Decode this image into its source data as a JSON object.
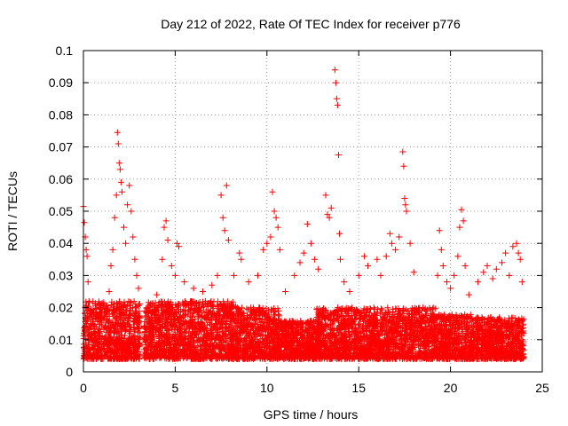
{
  "chart_data": {
    "type": "scatter",
    "title": "Day 212 of 2022, Rate Of TEC Index for receiver p776",
    "xlabel": "GPS time / hours",
    "ylabel": "ROTI / TECUs",
    "xlim": [
      0,
      25
    ],
    "ylim": [
      0,
      0.1
    ],
    "xticks": [
      "0",
      "5",
      "10",
      "15",
      "20",
      "25"
    ],
    "yticks": [
      "0",
      "0.01",
      "0.02",
      "0.03",
      "0.04",
      "0.05",
      "0.06",
      "0.07",
      "0.08",
      "0.09",
      "0.1"
    ],
    "grid": true,
    "marker": "+",
    "color": "#ff0000",
    "points": [
      [
        0.0,
        0.0515
      ],
      [
        0.05,
        0.0465
      ],
      [
        0.1,
        0.042
      ],
      [
        0.15,
        0.038
      ],
      [
        0.2,
        0.036
      ],
      [
        0.25,
        0.028
      ],
      [
        0.3,
        0.022
      ],
      [
        0.4,
        0.018
      ],
      [
        0.5,
        0.015
      ],
      [
        0.6,
        0.012
      ],
      [
        0.7,
        0.01
      ],
      [
        0.8,
        0.009
      ],
      [
        1.0,
        0.021
      ],
      [
        1.2,
        0.018
      ],
      [
        1.4,
        0.025
      ],
      [
        1.5,
        0.033
      ],
      [
        1.6,
        0.038
      ],
      [
        1.7,
        0.048
      ],
      [
        1.8,
        0.055
      ],
      [
        1.85,
        0.0745
      ],
      [
        1.9,
        0.071
      ],
      [
        1.95,
        0.065
      ],
      [
        2.0,
        0.063
      ],
      [
        2.05,
        0.059
      ],
      [
        2.1,
        0.056
      ],
      [
        2.2,
        0.045
      ],
      [
        2.3,
        0.04
      ],
      [
        2.4,
        0.052
      ],
      [
        2.5,
        0.058
      ],
      [
        2.6,
        0.05
      ],
      [
        2.7,
        0.042
      ],
      [
        2.8,
        0.035
      ],
      [
        2.9,
        0.03
      ],
      [
        3.0,
        0.026
      ],
      [
        3.5,
        0.02
      ],
      [
        4.0,
        0.024
      ],
      [
        4.3,
        0.035
      ],
      [
        4.4,
        0.045
      ],
      [
        4.5,
        0.047
      ],
      [
        4.6,
        0.041
      ],
      [
        4.8,
        0.033
      ],
      [
        5.0,
        0.03
      ],
      [
        5.1,
        0.04
      ],
      [
        5.2,
        0.039
      ],
      [
        5.5,
        0.028
      ],
      [
        6.0,
        0.026
      ],
      [
        6.5,
        0.025
      ],
      [
        7.0,
        0.027
      ],
      [
        7.3,
        0.03
      ],
      [
        7.5,
        0.055
      ],
      [
        7.6,
        0.048
      ],
      [
        7.7,
        0.044
      ],
      [
        7.8,
        0.058
      ],
      [
        7.9,
        0.041
      ],
      [
        8.2,
        0.03
      ],
      [
        8.5,
        0.037
      ],
      [
        8.6,
        0.035
      ],
      [
        9.0,
        0.028
      ],
      [
        9.5,
        0.03
      ],
      [
        9.8,
        0.038
      ],
      [
        10.0,
        0.04
      ],
      [
        10.2,
        0.042
      ],
      [
        10.3,
        0.056
      ],
      [
        10.4,
        0.05
      ],
      [
        10.5,
        0.048
      ],
      [
        10.6,
        0.045
      ],
      [
        10.7,
        0.038
      ],
      [
        11.0,
        0.025
      ],
      [
        11.5,
        0.03
      ],
      [
        11.8,
        0.034
      ],
      [
        12.0,
        0.037
      ],
      [
        12.2,
        0.046
      ],
      [
        12.4,
        0.04
      ],
      [
        12.6,
        0.035
      ],
      [
        12.8,
        0.032
      ],
      [
        13.2,
        0.055
      ],
      [
        13.3,
        0.049
      ],
      [
        13.4,
        0.048
      ],
      [
        13.5,
        0.051
      ],
      [
        13.7,
        0.094
      ],
      [
        13.75,
        0.09
      ],
      [
        13.8,
        0.085
      ],
      [
        13.85,
        0.083
      ],
      [
        13.9,
        0.0675
      ],
      [
        13.95,
        0.043
      ],
      [
        14.0,
        0.035
      ],
      [
        14.2,
        0.028
      ],
      [
        14.5,
        0.025
      ],
      [
        15.0,
        0.03
      ],
      [
        15.3,
        0.036
      ],
      [
        15.5,
        0.033
      ],
      [
        16.0,
        0.035
      ],
      [
        16.2,
        0.03
      ],
      [
        16.5,
        0.036
      ],
      [
        16.7,
        0.043
      ],
      [
        16.8,
        0.04
      ],
      [
        17.0,
        0.038
      ],
      [
        17.2,
        0.042
      ],
      [
        17.4,
        0.0685
      ],
      [
        17.45,
        0.064
      ],
      [
        17.5,
        0.054
      ],
      [
        17.55,
        0.052
      ],
      [
        17.6,
        0.05
      ],
      [
        17.8,
        0.04
      ],
      [
        18.0,
        0.031
      ],
      [
        18.5,
        0.02
      ],
      [
        19.0,
        0.018
      ],
      [
        19.3,
        0.03
      ],
      [
        19.4,
        0.044
      ],
      [
        19.5,
        0.038
      ],
      [
        19.6,
        0.033
      ],
      [
        19.8,
        0.028
      ],
      [
        20.0,
        0.026
      ],
      [
        20.2,
        0.03
      ],
      [
        20.4,
        0.036
      ],
      [
        20.5,
        0.045
      ],
      [
        20.6,
        0.0505
      ],
      [
        20.7,
        0.047
      ],
      [
        20.8,
        0.033
      ],
      [
        21.0,
        0.024
      ],
      [
        21.5,
        0.028
      ],
      [
        21.8,
        0.031
      ],
      [
        22.0,
        0.033
      ],
      [
        22.3,
        0.029
      ],
      [
        22.5,
        0.032
      ],
      [
        22.8,
        0.034
      ],
      [
        23.0,
        0.037
      ],
      [
        23.2,
        0.03
      ],
      [
        23.4,
        0.039
      ],
      [
        23.6,
        0.04
      ],
      [
        23.7,
        0.037
      ],
      [
        23.8,
        0.035
      ],
      [
        23.9,
        0.028
      ]
    ],
    "dense_band": {
      "segments": [
        {
          "x": [
            0.0,
            3.1
          ],
          "low": 0.004,
          "high": 0.022
        },
        {
          "x": [
            3.3,
            8.3
          ],
          "low": 0.004,
          "high": 0.022
        },
        {
          "x": [
            8.3,
            10.7
          ],
          "low": 0.004,
          "high": 0.02
        },
        {
          "x": [
            10.7,
            12.7
          ],
          "low": 0.004,
          "high": 0.016
        },
        {
          "x": [
            12.7,
            19.2
          ],
          "low": 0.004,
          "high": 0.02
        },
        {
          "x": [
            19.2,
            21.1
          ],
          "low": 0.004,
          "high": 0.018
        },
        {
          "x": [
            21.1,
            24.0
          ],
          "low": 0.004,
          "high": 0.017
        }
      ]
    }
  }
}
